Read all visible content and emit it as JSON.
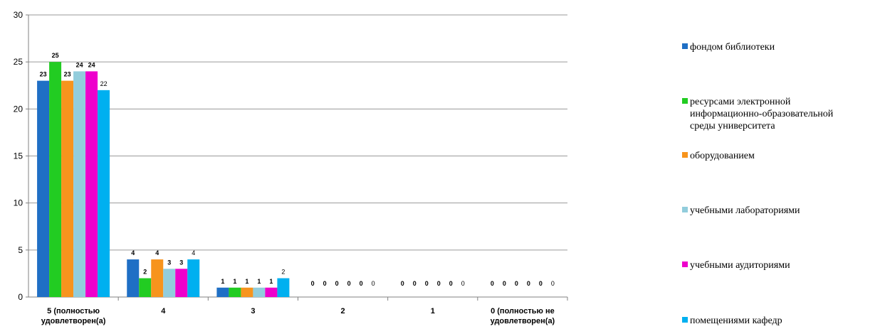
{
  "chart_data": {
    "type": "bar",
    "categories": [
      [
        "5 (полностью",
        "удовлетворен(а)"
      ],
      [
        "4"
      ],
      [
        "3"
      ],
      [
        "2"
      ],
      [
        "1"
      ],
      [
        "0 (полностью не",
        "удовлетворен(а)"
      ]
    ],
    "ylim": [
      0,
      30
    ],
    "yticks": [
      0,
      5,
      10,
      15,
      20,
      25,
      30
    ],
    "grid": true,
    "legend_position": "right",
    "series": [
      {
        "name": "фондом библиотеки",
        "color": "#1F6FC5",
        "values": [
          23,
          4,
          1,
          0,
          0,
          0
        ]
      },
      {
        "name": "ресурсами электронной информационно-образовательной среды университета",
        "name_lines": [
          "ресурсами электронной",
          "информационно-образовательной",
          "среды университета"
        ],
        "color": "#22CC22",
        "values": [
          25,
          2,
          1,
          0,
          0,
          0
        ]
      },
      {
        "name": "оборудованием",
        "color": "#F7941D",
        "values": [
          23,
          4,
          1,
          0,
          0,
          0
        ]
      },
      {
        "name": "учебными лабораториями",
        "color": "#92CDDC",
        "values": [
          24,
          3,
          1,
          0,
          0,
          0
        ]
      },
      {
        "name": "учебными аудиториями",
        "color": "#EE00CC",
        "values": [
          24,
          3,
          1,
          0,
          0,
          0
        ]
      },
      {
        "name": "помещениями кафедр",
        "color": "#00B0F0",
        "values": [
          22,
          4,
          2,
          0,
          0,
          0
        ]
      }
    ]
  }
}
